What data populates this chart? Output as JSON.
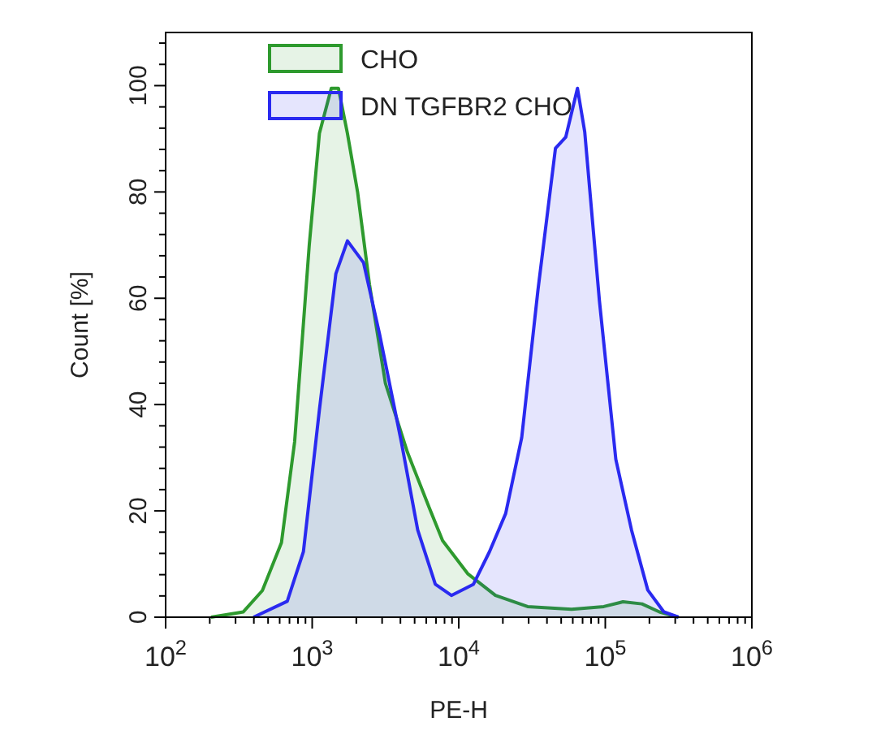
{
  "chart_data": {
    "type": "area",
    "xlabel": "PE-H",
    "ylabel": "Count [%]",
    "log": "x",
    "xlim": [
      100,
      1000000
    ],
    "ylim": [
      0,
      110
    ],
    "xticks": [
      {
        "value": 100,
        "label": "10$^{2}$"
      },
      {
        "value": 200,
        "label": null
      },
      {
        "value": 300,
        "label": null
      },
      {
        "value": 400,
        "label": null
      },
      {
        "value": 500,
        "label": null
      },
      {
        "value": 600,
        "label": null
      },
      {
        "value": 700,
        "label": null
      },
      {
        "value": 800,
        "label": null
      },
      {
        "value": 900,
        "label": null
      },
      {
        "value": 1000,
        "label": "10$^{3}$"
      },
      {
        "value": 2000,
        "label": null
      },
      {
        "value": 3000,
        "label": null
      },
      {
        "value": 4000,
        "label": null
      },
      {
        "value": 5000,
        "label": null
      },
      {
        "value": 6000,
        "label": null
      },
      {
        "value": 7000,
        "label": null
      },
      {
        "value": 8000,
        "label": null
      },
      {
        "value": 9000,
        "label": null
      },
      {
        "value": 10000,
        "label": "10$^{4}$"
      },
      {
        "value": 20000,
        "label": null
      },
      {
        "value": 30000,
        "label": null
      },
      {
        "value": 40000,
        "label": null
      },
      {
        "value": 50000,
        "label": null
      },
      {
        "value": 60000,
        "label": null
      },
      {
        "value": 70000,
        "label": null
      },
      {
        "value": 80000,
        "label": null
      },
      {
        "value": 90000,
        "label": null
      },
      {
        "value": 100000,
        "label": "10$^{5}$"
      },
      {
        "value": 200000,
        "label": null
      },
      {
        "value": 300000,
        "label": null
      },
      {
        "value": 400000,
        "label": null
      },
      {
        "value": 500000,
        "label": null
      },
      {
        "value": 600000,
        "label": null
      },
      {
        "value": 700000,
        "label": null
      },
      {
        "value": 800000,
        "label": null
      },
      {
        "value": 900000,
        "label": null
      },
      {
        "value": 1000000,
        "label": "10$^{6}$"
      }
    ],
    "yticks": [
      0,
      {
        "value": 4,
        "label": null
      },
      {
        "value": 8,
        "label": null
      },
      {
        "value": 12,
        "label": null
      },
      {
        "value": 16,
        "label": null
      },
      20,
      {
        "value": 24,
        "label": null
      },
      {
        "value": 28,
        "label": null
      },
      {
        "value": 32,
        "label": null
      },
      {
        "value": 36,
        "label": null
      },
      40,
      {
        "value": 44,
        "label": null
      },
      {
        "value": 48,
        "label": null
      },
      {
        "value": 52,
        "label": null
      },
      {
        "value": 56,
        "label": null
      },
      60,
      {
        "value": 64,
        "label": null
      },
      {
        "value": 68,
        "label": null
      },
      {
        "value": 72,
        "label": null
      },
      {
        "value": 76,
        "label": null
      },
      80,
      {
        "value": 84,
        "label": null
      },
      {
        "value": 88,
        "label": null
      },
      {
        "value": 92,
        "label": null
      },
      {
        "value": 96,
        "label": null
      },
      100,
      {
        "value": 104,
        "label": null
      },
      {
        "value": 108,
        "label": null
      }
    ],
    "grid": false,
    "legend": "top",
    "line_style": "solid",
    "marker": "none",
    "series": [
      {
        "name": "CHO",
        "color": "#2e9a2e",
        "x": [
          204,
          339,
          457,
          617,
          759,
          955,
          1120,
          1350,
          1510,
          1740,
          2040,
          2460,
          3160,
          4470,
          6310,
          7760,
          11500,
          17800,
          29500,
          58900,
          97700,
          132000,
          178000,
          234000,
          316000
        ],
        "values": [
          0,
          1,
          5,
          14,
          33,
          70,
          91,
          99.5,
          99.5,
          91,
          80,
          62.6,
          44,
          31,
          20.5,
          14.4,
          8.2,
          4.1,
          2,
          1.5,
          2,
          2.9,
          2.5,
          1,
          0
        ]
      },
      {
        "name": "DN TGFBR2 CHO",
        "color": "#2a2af0",
        "x": [
          398,
          676,
          871,
          1120,
          1450,
          1740,
          2240,
          2880,
          4070,
          5250,
          6920,
          8910,
          12600,
          16200,
          20900,
          26900,
          34700,
          45700,
          53700,
          64600,
          72400,
          91200,
          118000,
          151000,
          195000,
          251000,
          316000
        ],
        "values": [
          0,
          3,
          12.3,
          39,
          64.6,
          70.8,
          66.7,
          53.3,
          32.8,
          16.4,
          6.2,
          4.1,
          6.2,
          12.3,
          19.5,
          33.8,
          61.5,
          88.2,
          90.3,
          99.5,
          91.3,
          59.5,
          29.7,
          16.4,
          5.1,
          1,
          0
        ]
      }
    ]
  }
}
